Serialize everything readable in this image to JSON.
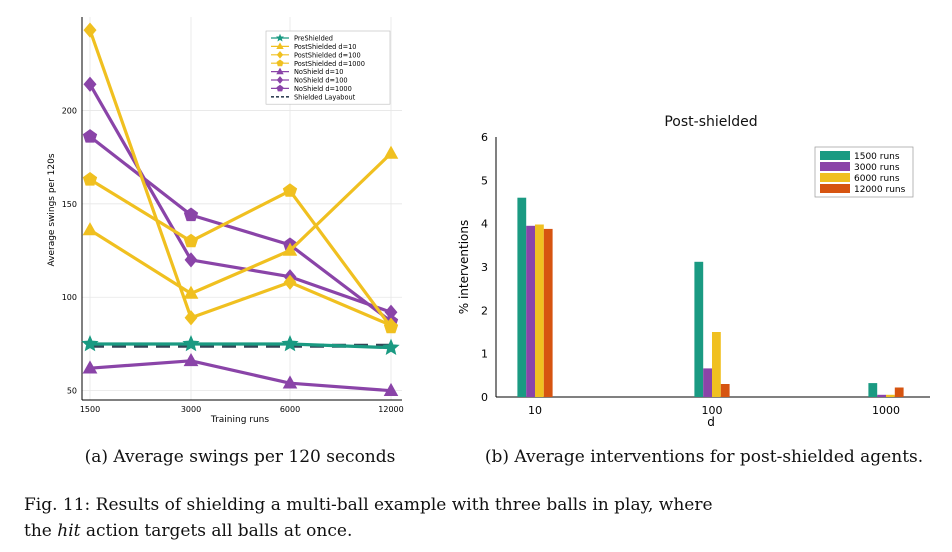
{
  "figure": {
    "caption_a": "(a) Average swings per 120 seconds",
    "caption_b": "(b) Average interventions for post-shielded agents.",
    "caption_line1": "Fig. 11: Results of shielding a multi-ball example with three balls in play, where",
    "caption_line2_pre": "the ",
    "caption_line2_em": "hit",
    "caption_line2_post": " action targets all balls at once."
  },
  "chart_data": [
    {
      "type": "line",
      "title": "",
      "xlabel": "Training runs",
      "ylabel": "Average swings per 120s",
      "x": [
        1500,
        3000,
        6000,
        12000
      ],
      "x_tick_labels": [
        "1500",
        "3000",
        "6000",
        "12000"
      ],
      "y_ticks": [
        50,
        100,
        150,
        200
      ],
      "ylim": [
        45,
        250
      ],
      "grid": true,
      "legend_position": "top-right",
      "series": [
        {
          "name": "PreShielded",
          "values": [
            75,
            75,
            75,
            73
          ],
          "color": "#1a9a82",
          "marker": "star"
        },
        {
          "name": "PostShielded d=10",
          "values": [
            136,
            102,
            125,
            177
          ],
          "color": "#f0c020",
          "marker": "triangle"
        },
        {
          "name": "PostShielded d=100",
          "values": [
            243,
            89,
            108,
            85
          ],
          "color": "#f0c020",
          "marker": "diamond"
        },
        {
          "name": "PostShielded d=1000",
          "values": [
            163,
            130,
            157,
            84
          ],
          "color": "#f0c020",
          "marker": "pentagon"
        },
        {
          "name": "NoShield d=10",
          "values": [
            62,
            66,
            54,
            50
          ],
          "color": "#8a44a8",
          "marker": "triangle"
        },
        {
          "name": "NoShield d=100",
          "values": [
            214,
            120,
            111,
            92
          ],
          "color": "#8a44a8",
          "marker": "diamond"
        },
        {
          "name": "NoShield d=1000",
          "values": [
            186,
            144,
            128,
            87
          ],
          "color": "#8a44a8",
          "marker": "pentagon"
        },
        {
          "name": "Shielded Layabout",
          "values": [
            74,
            74,
            74,
            74
          ],
          "color": "#334455",
          "marker": "none",
          "dashed": true
        }
      ]
    },
    {
      "type": "bar",
      "title": "Post-shielded",
      "xlabel": "d",
      "ylabel": "% interventions",
      "categories": [
        "10",
        "100",
        "1000"
      ],
      "y_ticks": [
        0,
        1,
        2,
        3,
        4,
        5,
        6
      ],
      "ylim": [
        0,
        6
      ],
      "grid": false,
      "legend_position": "top-right",
      "series": [
        {
          "name": "1500 runs",
          "values": [
            4.6,
            3.12,
            0.32
          ],
          "color": "#1a9a82"
        },
        {
          "name": "3000 runs",
          "values": [
            3.95,
            0.66,
            0.05
          ],
          "color": "#8a44a8"
        },
        {
          "name": "6000 runs",
          "values": [
            3.98,
            1.5,
            0.05
          ],
          "color": "#f0c020"
        },
        {
          "name": "12000 runs",
          "values": [
            3.88,
            0.3,
            0.22
          ],
          "color": "#d65410"
        }
      ]
    }
  ]
}
